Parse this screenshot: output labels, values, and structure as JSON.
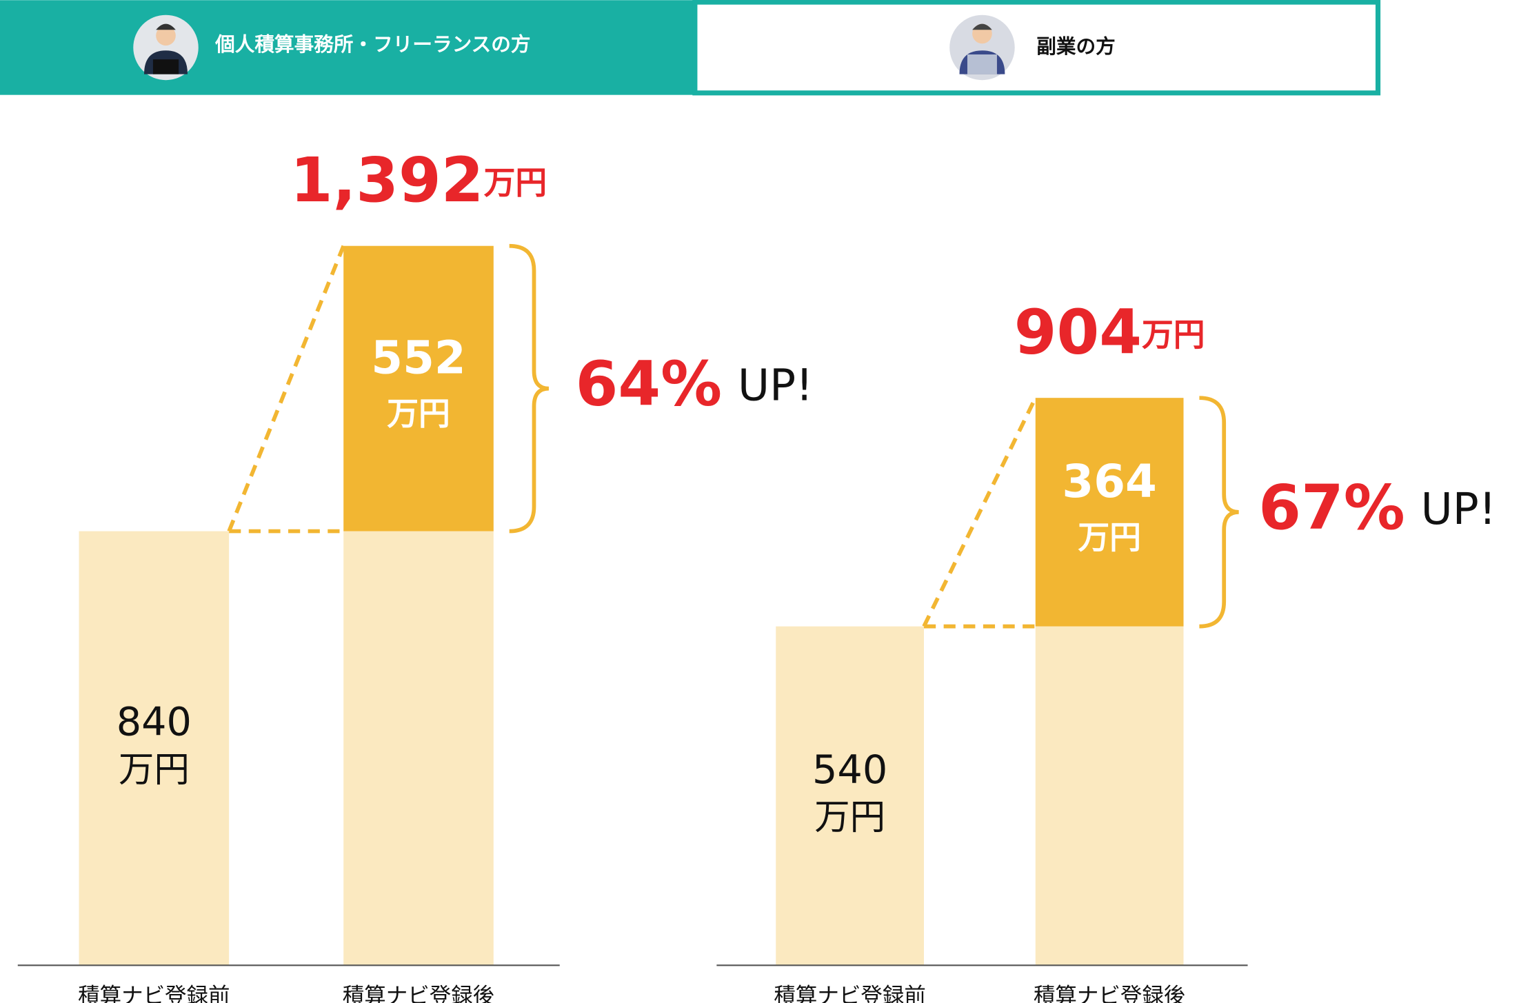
{
  "tabs": [
    {
      "label": "個人積算事務所・フリーランスの方"
    },
    {
      "label": "副業の方"
    }
  ],
  "chart_data": [
    {
      "type": "bar",
      "stacked": true,
      "categories": [
        "積算ナビ登録前",
        "積算ナビ登録後"
      ],
      "unit": "万円",
      "series": [
        {
          "color": "#fbe9c0",
          "values": [
            840,
            840
          ]
        },
        {
          "color": "#f2b632",
          "values": [
            null,
            552
          ]
        }
      ],
      "total": {
        "value": 1392,
        "label": "1,392"
      },
      "increase": {
        "value": 64,
        "label": "64%"
      },
      "increase_text": "UP!"
    },
    {
      "type": "bar",
      "stacked": true,
      "categories": [
        "積算ナビ登録前",
        "積算ナビ登録後"
      ],
      "unit": "万円",
      "series": [
        {
          "color": "#fbe9c0",
          "values": [
            540,
            540
          ]
        },
        {
          "color": "#f2b632",
          "values": [
            null,
            364
          ]
        }
      ],
      "total": {
        "value": 904,
        "label": "904"
      },
      "increase": {
        "value": 67,
        "label": "67%"
      },
      "increase_text": "UP!"
    }
  ]
}
